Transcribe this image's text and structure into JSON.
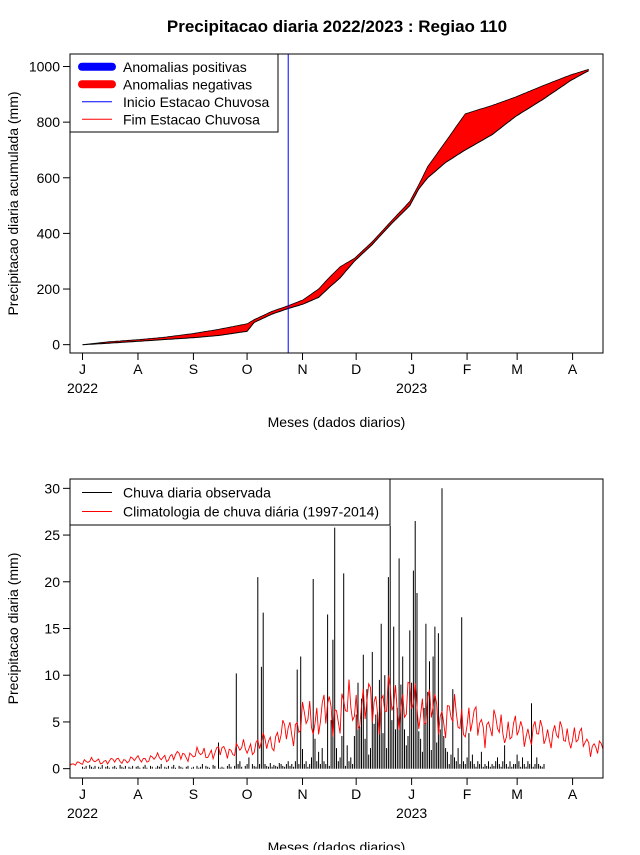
{
  "title": "Precipitacao diaria 2022/2023 : Regiao 110",
  "chart_data": [
    {
      "type": "area",
      "ylabel": "Precipitacao diaria acumulada (mm)",
      "xlabel": "Meses (dados diarios)",
      "month_ticks": [
        "J",
        "A",
        "S",
        "O",
        "N",
        "D",
        "J",
        "F",
        "M",
        "A"
      ],
      "month_tick_dates": [
        "2022-07-01",
        "2022-08-01",
        "2022-09-01",
        "2022-10-01",
        "2022-11-01",
        "2022-12-01",
        "2023-01-01",
        "2023-02-01",
        "2023-03-01",
        "2023-04-01"
      ],
      "year_labels": [
        {
          "label": "2022",
          "date": "2022-07-01"
        },
        {
          "label": "2023",
          "date": "2023-01-01"
        }
      ],
      "x_range": [
        "2022-06-24",
        "2023-04-18"
      ],
      "ylim": [
        -30,
        1045
      ],
      "yticks": [
        0,
        200,
        400,
        600,
        800,
        1000
      ],
      "legend": {
        "position": "top-left",
        "entries": [
          {
            "label": "Anomalias positivas",
            "color": "#0000FF",
            "style": "thick"
          },
          {
            "label": "Anomalias negativas",
            "color": "#FF0000",
            "style": "thick"
          },
          {
            "label": "Inicio Estacao Chuvosa",
            "color": "#0000FF",
            "style": "thin"
          },
          {
            "label": "Fim Estacao Chuvosa",
            "color": "#FF0000",
            "style": "thin"
          }
        ]
      },
      "rainy_season_start": "2022-10-24",
      "series": [
        {
          "name": "observed_cumulative",
          "color": "#000000",
          "points": [
            [
              "2022-07-01",
              0
            ],
            [
              "2022-07-15",
              5
            ],
            [
              "2022-08-01",
              12
            ],
            [
              "2022-08-15",
              18
            ],
            [
              "2022-09-01",
              25
            ],
            [
              "2022-09-15",
              33
            ],
            [
              "2022-10-01",
              48
            ],
            [
              "2022-10-05",
              80
            ],
            [
              "2022-10-15",
              110
            ],
            [
              "2022-10-24",
              130
            ],
            [
              "2022-11-01",
              145
            ],
            [
              "2022-11-10",
              170
            ],
            [
              "2022-11-15",
              200
            ],
            [
              "2022-11-22",
              240
            ],
            [
              "2022-11-30",
              300
            ],
            [
              "2022-12-10",
              360
            ],
            [
              "2022-12-20",
              430
            ],
            [
              "2022-12-31",
              500
            ],
            [
              "2023-01-05",
              560
            ],
            [
              "2023-01-10",
              600
            ],
            [
              "2023-01-20",
              655
            ],
            [
              "2023-01-31",
              700
            ],
            [
              "2023-02-15",
              755
            ],
            [
              "2023-02-28",
              820
            ],
            [
              "2023-03-15",
              880
            ],
            [
              "2023-03-31",
              950
            ],
            [
              "2023-04-10",
              985
            ]
          ]
        },
        {
          "name": "climatology_cumulative",
          "color": "#000000",
          "points": [
            [
              "2022-07-01",
              0
            ],
            [
              "2022-07-15",
              10
            ],
            [
              "2022-08-01",
              18
            ],
            [
              "2022-08-15",
              26
            ],
            [
              "2022-09-01",
              40
            ],
            [
              "2022-09-15",
              55
            ],
            [
              "2022-10-01",
              75
            ],
            [
              "2022-10-05",
              90
            ],
            [
              "2022-10-15",
              120
            ],
            [
              "2022-10-24",
              140
            ],
            [
              "2022-11-01",
              160
            ],
            [
              "2022-11-10",
              200
            ],
            [
              "2022-11-15",
              235
            ],
            [
              "2022-11-22",
              280
            ],
            [
              "2022-11-30",
              310
            ],
            [
              "2022-12-10",
              370
            ],
            [
              "2022-12-20",
              440
            ],
            [
              "2022-12-31",
              515
            ],
            [
              "2023-01-05",
              575
            ],
            [
              "2023-01-10",
              640
            ],
            [
              "2023-01-20",
              730
            ],
            [
              "2023-01-31",
              830
            ],
            [
              "2023-02-15",
              860
            ],
            [
              "2023-02-28",
              890
            ],
            [
              "2023-03-15",
              930
            ],
            [
              "2023-03-31",
              970
            ],
            [
              "2023-04-10",
              990
            ]
          ]
        }
      ]
    },
    {
      "type": "bar",
      "ylabel": "Precipitacao diaria (mm)",
      "xlabel": "Meses (dados diarios)",
      "month_ticks": [
        "J",
        "A",
        "S",
        "O",
        "N",
        "D",
        "J",
        "F",
        "M",
        "A"
      ],
      "month_tick_dates": [
        "2022-07-01",
        "2022-08-01",
        "2022-09-01",
        "2022-10-01",
        "2022-11-01",
        "2022-12-01",
        "2023-01-01",
        "2023-02-01",
        "2023-03-01",
        "2023-04-01"
      ],
      "year_labels": [
        {
          "label": "2022",
          "date": "2022-07-01"
        },
        {
          "label": "2023",
          "date": "2023-01-01"
        }
      ],
      "x_range": [
        "2022-06-24",
        "2023-04-18"
      ],
      "ylim": [
        -1,
        31
      ],
      "yticks": [
        0,
        5,
        10,
        15,
        20,
        25,
        30
      ],
      "legend": {
        "position": "top-left",
        "entries": [
          {
            "label": "Chuva diaria observada",
            "color": "#000000",
            "style": "thin"
          },
          {
            "label": "Climatologia de chuva diária (1997-2014)",
            "color": "#FF0000",
            "style": "thin"
          }
        ]
      },
      "observed_start_date": "2022-07-01",
      "observed_daily_mm": [
        0.2,
        0.1,
        0.3,
        0,
        0.4,
        0.2,
        0.1,
        0.3,
        0,
        0.2,
        0.1,
        0.4,
        0,
        0.2,
        0.3,
        0.1,
        0,
        0.2,
        0.3,
        0.1,
        0,
        0.4,
        0.2,
        0.1,
        0.3,
        0,
        0.2,
        0.1,
        0.3,
        0,
        0.2,
        0.3,
        0.1,
        0,
        0.2,
        0.4,
        0.1,
        0,
        0.3,
        0.2,
        0,
        0.1,
        0.3,
        0.2,
        0.5,
        0,
        0.2,
        0.1,
        0.3,
        0,
        0.2,
        0.4,
        0.1,
        0,
        0.3,
        0.2,
        0.1,
        0,
        0.2,
        0.3,
        0,
        0.1,
        0.2,
        0,
        0.3,
        0.1,
        0.2,
        0.5,
        0,
        0.3,
        0.2,
        0.1,
        0,
        0.4,
        0.3,
        0,
        2.8,
        0.1,
        0.2,
        0.1,
        0,
        0.3,
        0.5,
        0.2,
        0,
        0.3,
        10.2,
        0.5,
        0.8,
        0.2,
        0,
        0.3,
        0.5,
        1.2,
        0,
        0.5,
        0.3,
        0.2,
        20.5,
        0.5,
        10.9,
        16.7,
        0.5,
        0.3,
        0.2,
        0.6,
        0.2,
        0.4,
        0.3,
        0.2,
        0.6,
        0.5,
        0.3,
        0.2,
        0.5,
        0.8,
        0.3,
        0.5,
        0.2,
        0.8,
        10.6,
        0.5,
        12.0,
        2.1,
        0.5,
        0.8,
        0.2,
        0.5,
        1.2,
        20.3,
        3.2,
        0.8,
        1.8,
        0.5,
        2.2,
        0.8,
        0.5,
        16.5,
        0.3,
        5.2,
        13.8,
        25.8,
        2.2,
        0.8,
        1.2,
        3.5,
        20.9,
        0.3,
        2.5,
        0.8,
        1.2,
        0.5,
        3.5,
        5.8,
        9.2,
        4.5,
        7.5,
        12.2,
        3.2,
        8.5,
        1.5,
        2.2,
        12.5,
        4.8,
        5.8,
        6.0,
        9.5,
        15.5,
        3.8,
        10.0,
        2.2,
        20.5,
        26.0,
        5.2,
        15.2,
        4.2,
        6.5,
        22.5,
        9.0,
        12.0,
        4.2,
        2.5,
        3.5,
        14.8,
        9.2,
        21.2,
        26.5,
        18.8,
        4.0,
        3.2,
        1.8,
        6.5,
        15.5,
        8.2,
        11.5,
        2.0,
        12.0,
        15.2,
        2.8,
        14.5,
        4.2,
        30.0,
        3.5,
        2.2,
        1.8,
        0.5,
        1.5,
        8.5,
        1.2,
        0.8,
        2.2,
        0.5,
        16.2,
        0.8,
        0.5,
        1.2,
        3.8,
        0.8,
        1.5,
        0.5,
        0.2,
        0.8,
        0.5,
        1.8,
        0.2,
        0.5,
        0.3,
        0.8,
        0.2,
        0.5,
        0.3,
        0.8,
        1.2,
        0.5,
        0.2,
        0.8,
        2.5,
        0.5,
        0.2,
        0.8,
        0.2,
        0.5,
        0.5,
        1.5,
        0.8,
        0.2,
        1.2,
        0.5,
        0.2,
        0.8,
        0.5,
        7.0,
        0.2,
        0.5,
        1.2,
        0.5,
        0.3,
        0.2,
        0.5
      ],
      "climatology_points": [
        [
          "2022-06-24",
          0.3
        ],
        [
          "2022-07-01",
          0.8
        ],
        [
          "2022-07-15",
          0.8
        ],
        [
          "2022-08-01",
          1.0
        ],
        [
          "2022-08-15",
          1.2
        ],
        [
          "2022-09-01",
          1.5
        ],
        [
          "2022-09-15",
          1.8
        ],
        [
          "2022-10-01",
          2.2
        ],
        [
          "2022-10-15",
          3.0
        ],
        [
          "2022-11-01",
          5.0
        ],
        [
          "2022-11-15",
          6.0
        ],
        [
          "2022-12-01",
          6.5
        ],
        [
          "2022-12-15",
          7.0
        ],
        [
          "2023-01-01",
          7.0
        ],
        [
          "2023-01-15",
          6.0
        ],
        [
          "2023-02-01",
          5.0
        ],
        [
          "2023-02-15",
          4.5
        ],
        [
          "2023-03-01",
          4.0
        ],
        [
          "2023-03-15",
          3.8
        ],
        [
          "2023-04-01",
          3.5
        ],
        [
          "2023-04-18",
          2.0
        ]
      ],
      "climatology_color": "#FF0000",
      "observed_color": "#000000"
    }
  ]
}
